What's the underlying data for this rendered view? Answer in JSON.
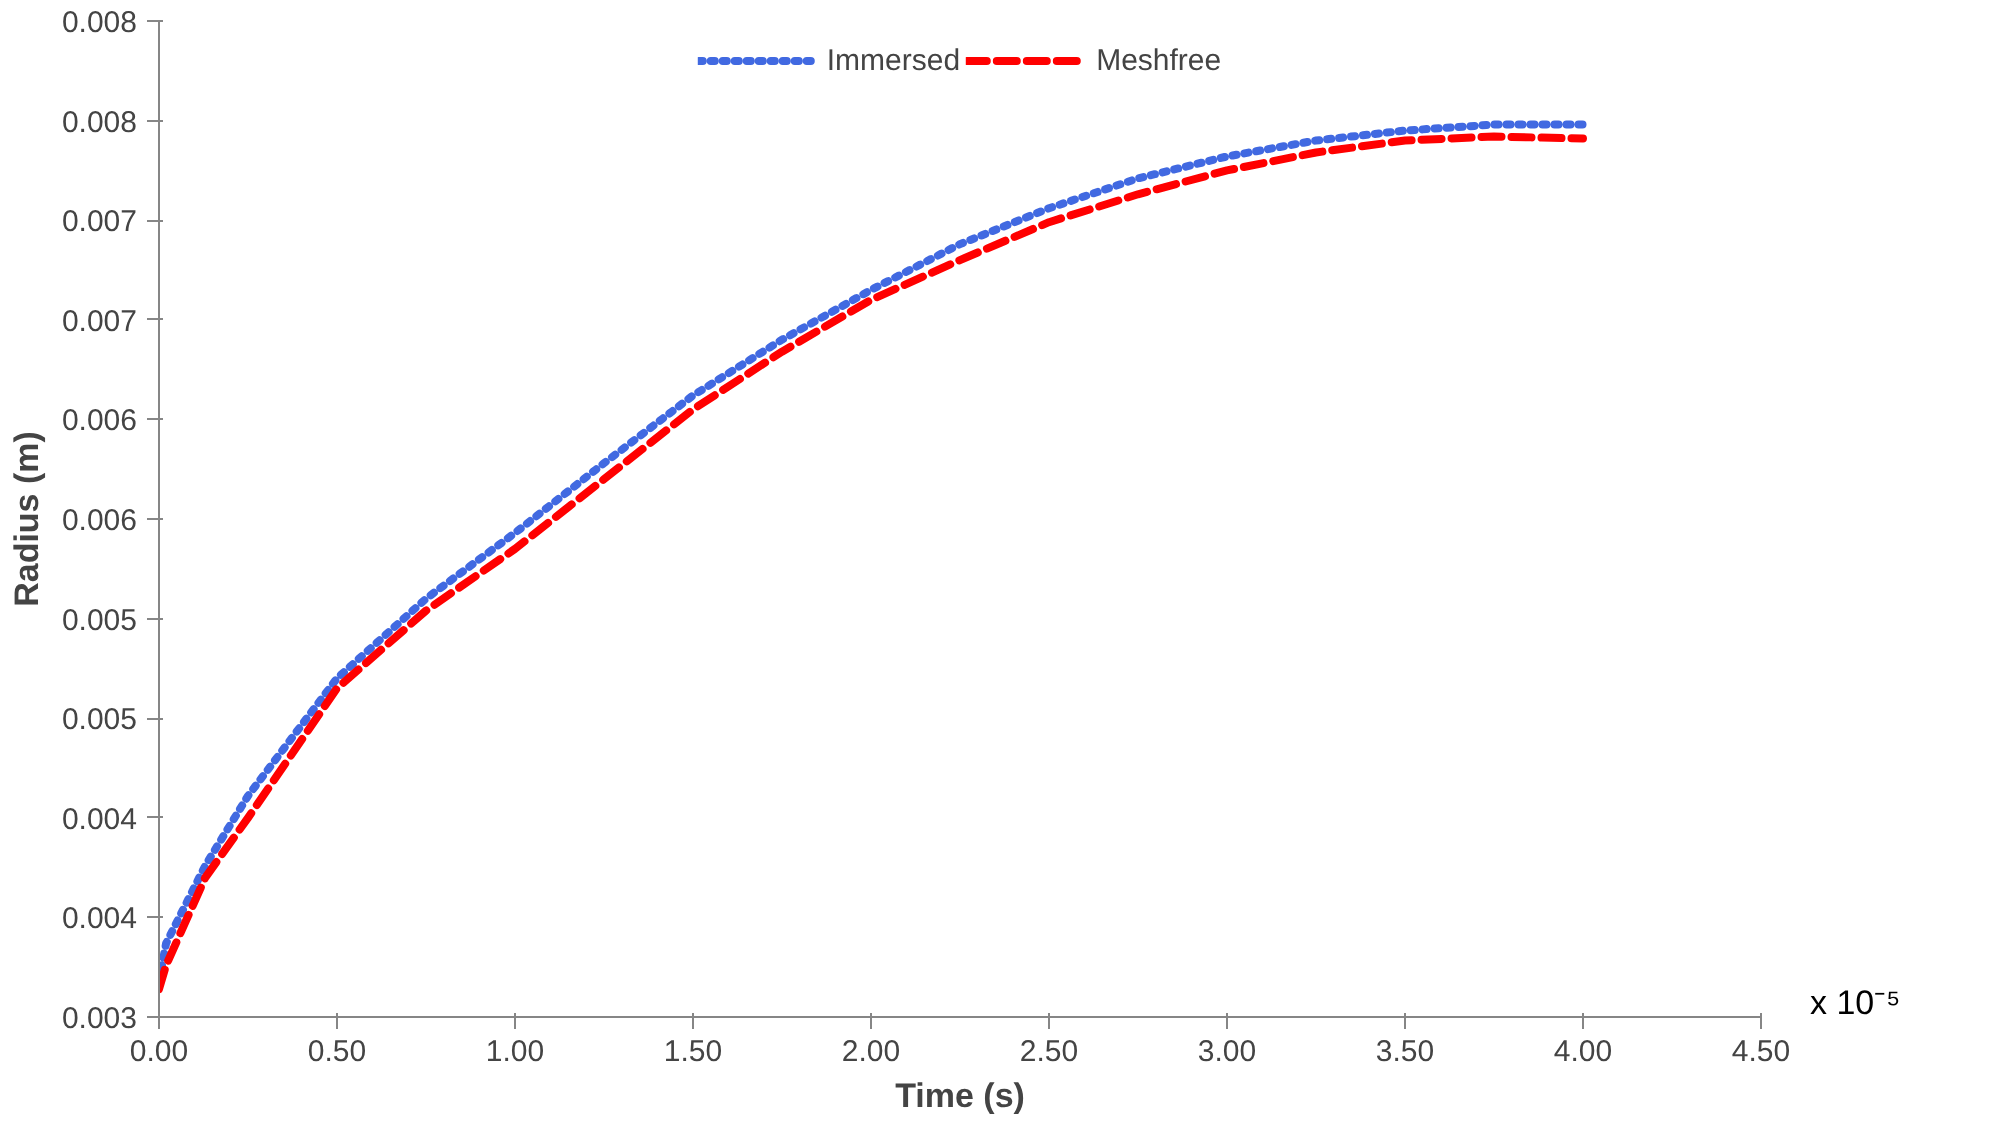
{
  "chart_data": {
    "type": "line",
    "xlabel": "Time (s)",
    "ylabel": "Radius (m)",
    "annotations": [
      "x 10⁻⁵"
    ],
    "x": [
      0,
      0.02,
      0.13,
      0.25,
      0.5,
      0.75,
      1.0,
      1.25,
      1.5,
      1.75,
      2.0,
      2.25,
      2.5,
      2.75,
      3.0,
      3.25,
      3.5,
      3.75,
      4.0
    ],
    "series": [
      {
        "name": "Immersed",
        "color": "#4169e1",
        "line_style": "dotted",
        "values": [
          0.00318,
          0.00337,
          0.00376,
          0.00411,
          0.0047,
          0.0051,
          0.00543,
          0.00578,
          0.00612,
          0.0064,
          0.00665,
          0.00688,
          0.00706,
          0.00721,
          0.00732,
          0.0074,
          0.00745,
          0.00748,
          0.00748
        ]
      },
      {
        "name": "Meshfree",
        "color": "#ff0000",
        "line_style": "dashed",
        "values": [
          0.00314,
          0.00326,
          0.0037,
          0.004,
          0.00465,
          0.00504,
          0.00535,
          0.0057,
          0.00605,
          0.00634,
          0.0066,
          0.0068,
          0.00699,
          0.00713,
          0.00725,
          0.00734,
          0.0074,
          0.00742,
          0.00741
        ]
      }
    ],
    "xlim": [
      0,
      4.5
    ],
    "xticks": [
      {
        "value": 0,
        "label": "0.00"
      },
      {
        "value": 0.5,
        "label": "0.50"
      },
      {
        "value": 1,
        "label": "1.00"
      },
      {
        "value": 1.5,
        "label": "1.50"
      },
      {
        "value": 2,
        "label": "2.00"
      },
      {
        "value": 2.5,
        "label": "2.50"
      },
      {
        "value": 3,
        "label": "3.00"
      },
      {
        "value": 3.5,
        "label": "3.50"
      },
      {
        "value": 4,
        "label": "4.00"
      },
      {
        "value": 4.5,
        "label": "4.50"
      }
    ],
    "ylim": [
      0.003,
      0.008
    ],
    "yticks": [
      0.003,
      {
        "value": 0.0035,
        "label": "0.004"
      },
      0.004,
      {
        "value": 0.0045,
        "label": "0.005"
      },
      0.005,
      {
        "value": 0.0055,
        "label": "0.006"
      },
      0.006,
      {
        "value": 0.0065,
        "label": "0.007"
      },
      0.007,
      {
        "value": 0.0075,
        "label": "0.008"
      },
      0.008
    ],
    "grid": false,
    "legend": "top",
    "marker": "none"
  }
}
